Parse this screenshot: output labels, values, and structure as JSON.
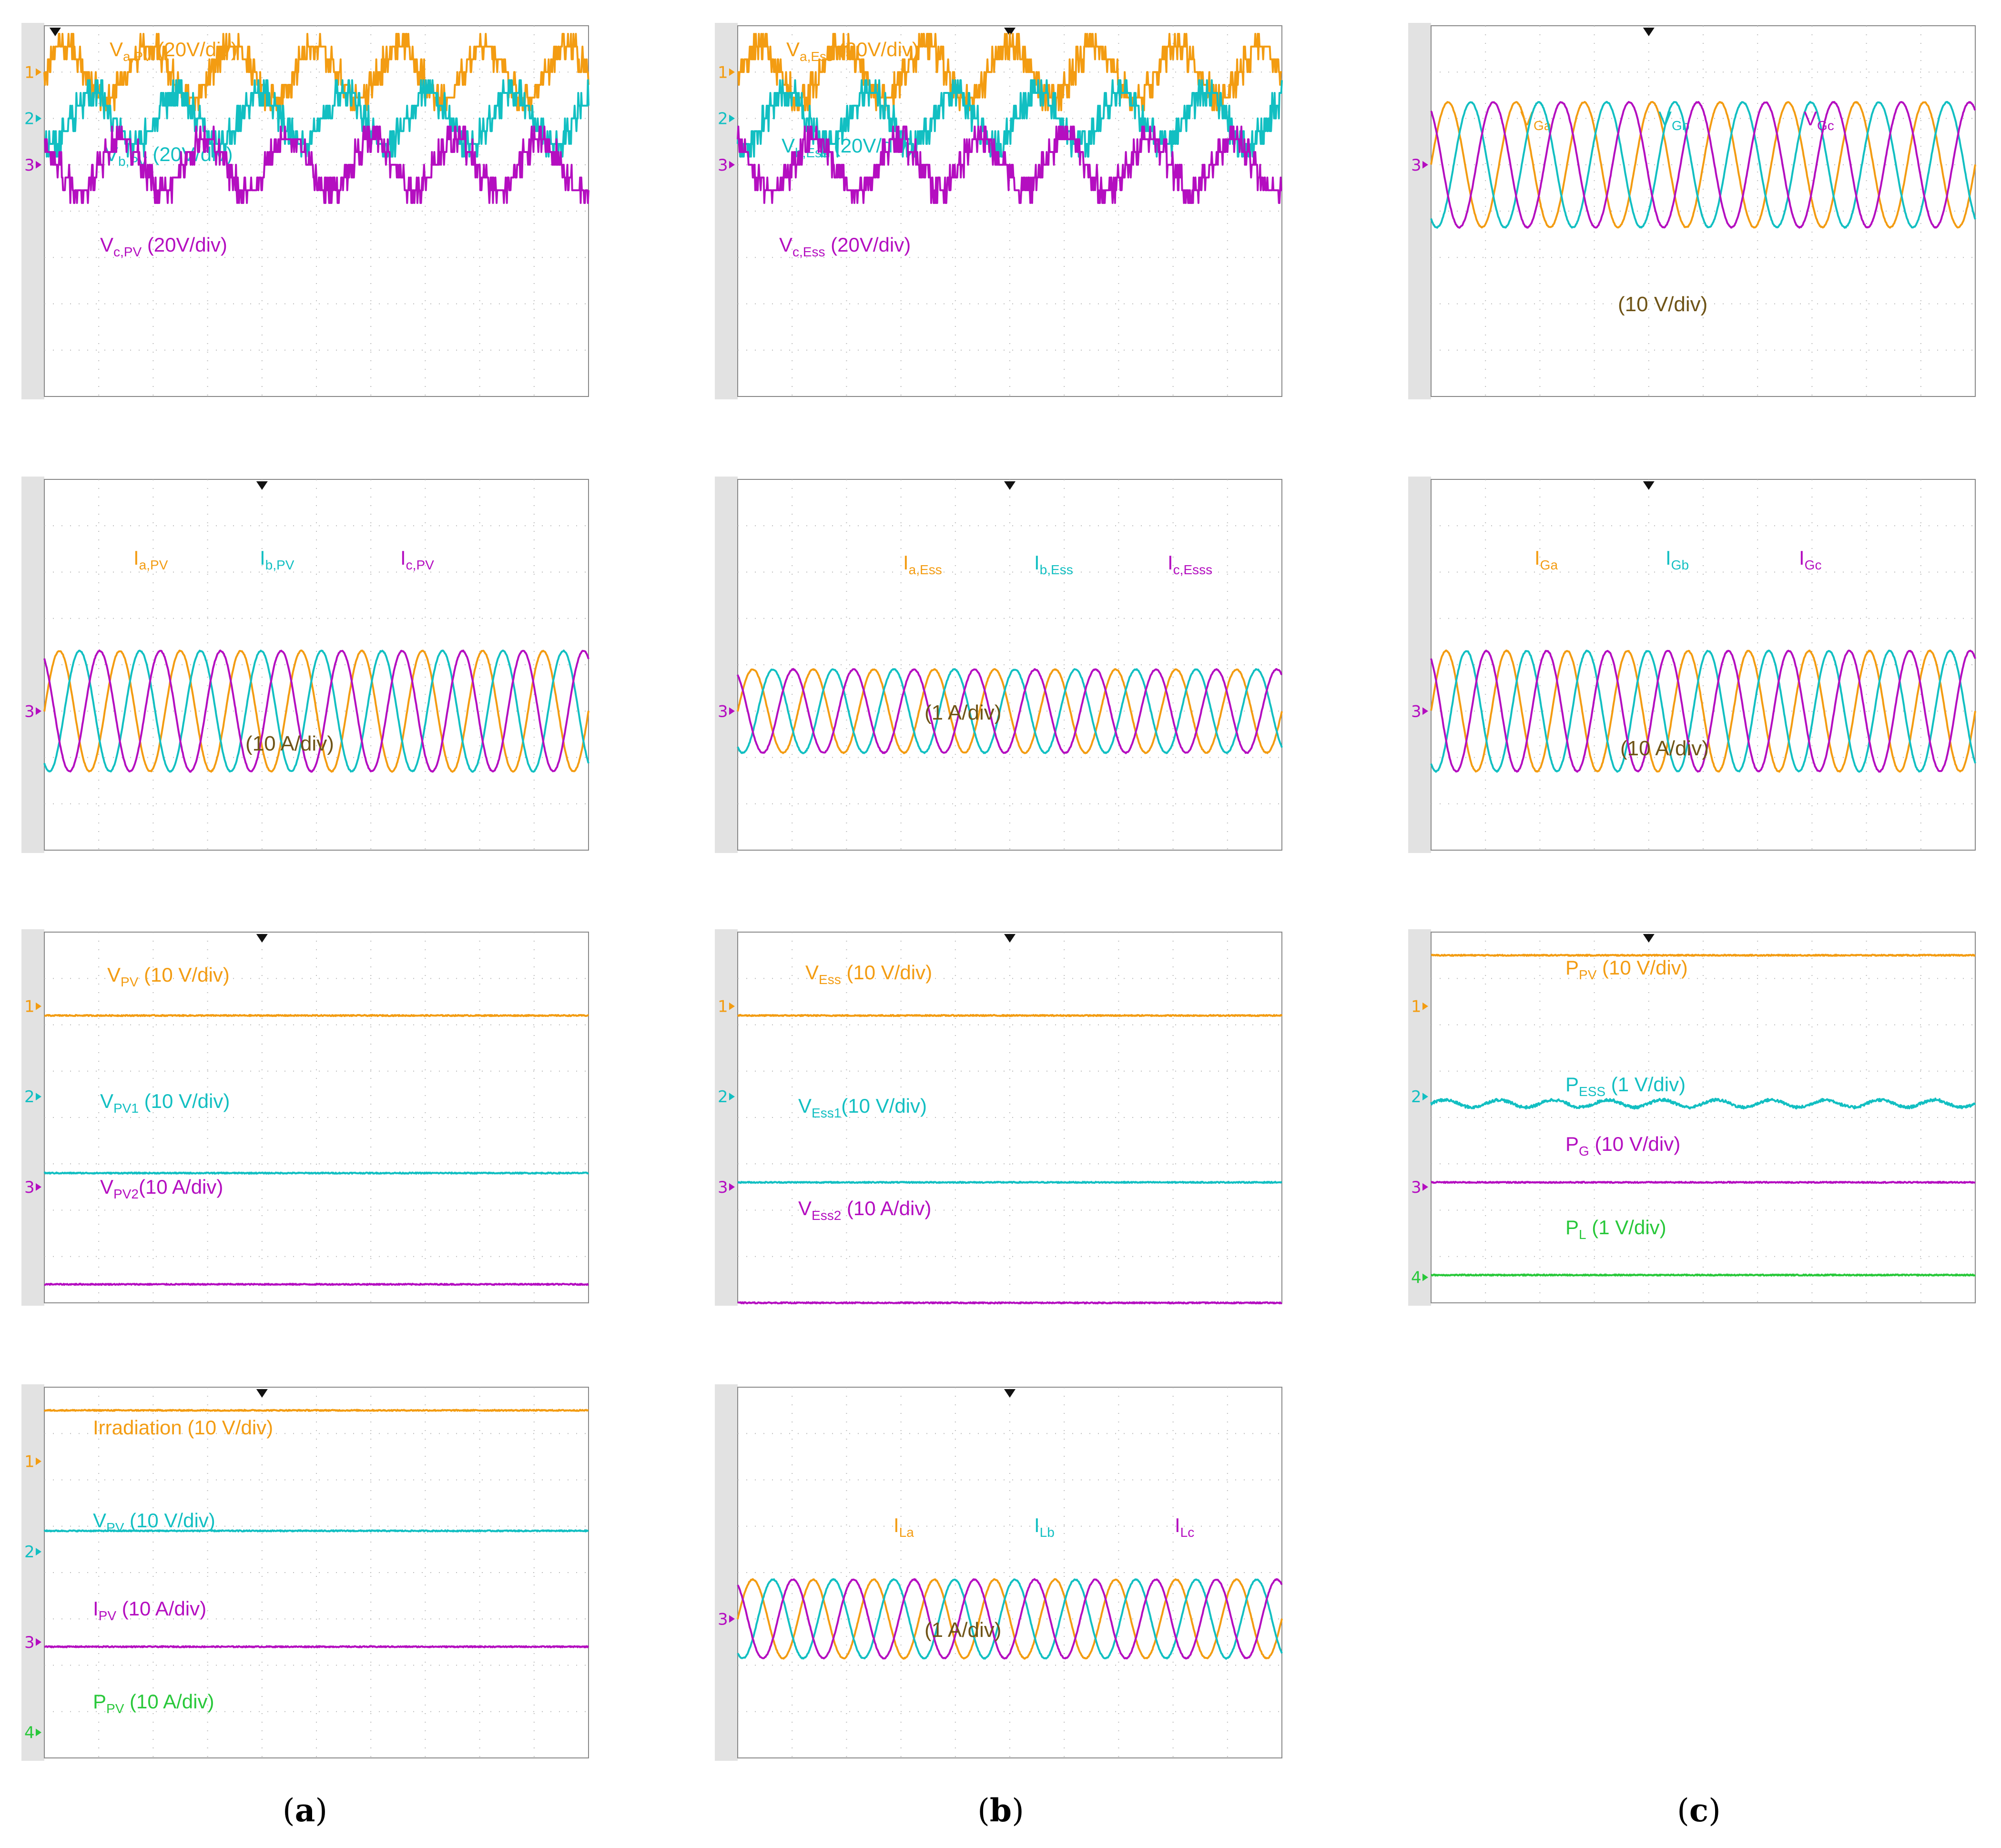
{
  "colors": {
    "orange": "#F39C12",
    "cyan": "#12BFC2",
    "magenta": "#B40EC0",
    "green": "#28C83A",
    "label_dark": "#6F5417",
    "grid": "#BBBBBB",
    "border": "#888888",
    "left_strip": "#E2E2E2"
  },
  "captions": [
    {
      "open": "(",
      "letter": "a",
      "close": ")"
    },
    {
      "open": "(",
      "letter": "b",
      "close": ")"
    },
    {
      "open": "(",
      "letter": "c",
      "close": ")"
    }
  ],
  "chart_data": [
    {
      "type": "line",
      "id": "a1",
      "column": "a",
      "series": [
        {
          "name": "Va,PV (20V/div)",
          "label_main": "V",
          "label_sub": "a,PV",
          "label_rest": " (20V/div)",
          "color": "orange",
          "shape": "multilevel",
          "level": 1,
          "amp": 0.55,
          "phase": 0
        },
        {
          "name": "Vb,PV (20V/div)",
          "label_main": "V",
          "label_sub": "b,PV",
          "label_rest": " (20V/div)",
          "color": "cyan",
          "shape": "multilevel",
          "level": 2,
          "amp": 0.55,
          "phase": -120
        },
        {
          "name": "Vc,PV (20V/div)",
          "label_main": "V",
          "label_sub": "c,PV",
          "label_rest": " (20V/div)",
          "color": "magenta",
          "shape": "multilevel",
          "level": 3,
          "amp": 0.55,
          "phase": 120
        }
      ],
      "cycles": 6.5,
      "channel_markers": [
        "1",
        "2",
        "3"
      ],
      "extra_label": ""
    },
    {
      "type": "line",
      "id": "b1",
      "column": "b",
      "series": [
        {
          "name": "Va,Ess (20V/div)",
          "label_main": "V",
          "label_sub": "a,Ess",
          "label_rest": " (20V/div)",
          "color": "orange",
          "shape": "multilevel",
          "level": 1,
          "amp": 0.55,
          "phase": 0
        },
        {
          "name": "Vb,Ess (20V/div)",
          "label_main": "V",
          "label_sub": "b,Ess",
          "label_rest": " (20V/div)",
          "color": "cyan",
          "shape": "multilevel",
          "level": 2,
          "amp": 0.55,
          "phase": -120
        },
        {
          "name": "Vc,Ess (20V/div)",
          "label_main": "V",
          "label_sub": "c,Ess",
          "label_rest": " (20V/div)",
          "color": "magenta",
          "shape": "multilevel",
          "level": 3,
          "amp": 0.55,
          "phase": 120
        }
      ],
      "cycles": 6.5,
      "channel_markers": [
        "1",
        "2",
        "3"
      ],
      "extra_label": ""
    },
    {
      "type": "line",
      "id": "c1",
      "column": "c",
      "series": [
        {
          "name": "VGa",
          "label_main": "V",
          "label_sub": "Ga",
          "label_rest": "",
          "color": "orange",
          "shape": "sine",
          "level": 3,
          "amp": 1.35,
          "phase": 0
        },
        {
          "name": "VGb",
          "label_main": "V",
          "label_sub": "Gb",
          "label_rest": "",
          "color": "cyan",
          "shape": "sine",
          "level": 3,
          "amp": 1.35,
          "phase": -120
        },
        {
          "name": "VGc",
          "label_main": "V",
          "label_sub": "Gc",
          "label_rest": "",
          "color": "magenta",
          "shape": "sine",
          "level": 3,
          "amp": 1.35,
          "phase": 120
        }
      ],
      "cycles": 8,
      "channel_markers": [
        "3"
      ],
      "extra_label": "(10 V/div)"
    },
    {
      "type": "line",
      "id": "a2",
      "column": "a",
      "series": [
        {
          "name": "Ia,PV",
          "label_main": "I",
          "label_sub": "a,PV",
          "label_rest": "",
          "color": "orange",
          "shape": "sine",
          "level": 5,
          "amp": 1.3,
          "phase": 0
        },
        {
          "name": "Ib,PV",
          "label_main": "I",
          "label_sub": "b,PV",
          "label_rest": "",
          "color": "cyan",
          "shape": "sine",
          "level": 5,
          "amp": 1.3,
          "phase": -120
        },
        {
          "name": "Ic,PV",
          "label_main": "I",
          "label_sub": "c,PV",
          "label_rest": "",
          "color": "magenta",
          "shape": "sine",
          "level": 5,
          "amp": 1.3,
          "phase": 120
        }
      ],
      "cycles": 9,
      "channel_markers": [
        "3"
      ],
      "extra_label": "(10 A/div)"
    },
    {
      "type": "line",
      "id": "b2",
      "column": "b",
      "series": [
        {
          "name": "Ia,Ess",
          "label_main": "I",
          "label_sub": "a,Ess",
          "label_rest": "",
          "color": "orange",
          "shape": "sine",
          "level": 5,
          "amp": 0.9,
          "phase": 0
        },
        {
          "name": "Ib,Ess",
          "label_main": "I",
          "label_sub": "b,Ess",
          "label_rest": "",
          "color": "cyan",
          "shape": "sine",
          "level": 5,
          "amp": 0.9,
          "phase": -120
        },
        {
          "name": "Ic,Esss",
          "label_main": "I",
          "label_sub": "c,Esss",
          "label_rest": "",
          "color": "magenta",
          "shape": "sine",
          "level": 5,
          "amp": 0.9,
          "phase": 120
        }
      ],
      "cycles": 9,
      "channel_markers": [
        "3"
      ],
      "extra_label": "(1 A/div)"
    },
    {
      "type": "line",
      "id": "c2",
      "column": "c",
      "series": [
        {
          "name": "IGa",
          "label_main": "I",
          "label_sub": "Ga",
          "label_rest": "",
          "color": "orange",
          "shape": "sine",
          "level": 5,
          "amp": 1.3,
          "phase": 0
        },
        {
          "name": "IGb",
          "label_main": "I",
          "label_sub": "Gb",
          "label_rest": "",
          "color": "cyan",
          "shape": "sine",
          "level": 5,
          "amp": 1.3,
          "phase": -120
        },
        {
          "name": "IGc",
          "label_main": "I",
          "label_sub": "Gc",
          "label_rest": "",
          "color": "magenta",
          "shape": "sine",
          "level": 5,
          "amp": 1.3,
          "phase": 120
        }
      ],
      "cycles": 9,
      "channel_markers": [
        "3"
      ],
      "extra_label": "(10 A/div)"
    },
    {
      "type": "line",
      "id": "a3",
      "column": "a",
      "series": [
        {
          "name": "VPV (10 V/div)",
          "label_main": "V",
          "label_sub": "PV",
          "label_rest": " (10 V/div)",
          "color": "orange",
          "shape": "flat",
          "level": 1.8
        },
        {
          "name": "VPV1 (10 V/div)",
          "label_main": "V",
          "label_sub": "PV1",
          "label_rest": " (10 V/div)",
          "color": "cyan",
          "shape": "flat",
          "level": 5.2
        },
        {
          "name": "VPV2(10 A/div)",
          "label_main": "V",
          "label_sub": "PV2",
          "label_rest": "(10 A/div)",
          "color": "magenta",
          "shape": "flat",
          "level": 7.6
        }
      ],
      "channel_markers": [
        "1",
        "2",
        "3"
      ],
      "extra_label": ""
    },
    {
      "type": "line",
      "id": "b3",
      "column": "b",
      "series": [
        {
          "name": "VEss (10 V/div)",
          "label_main": "V",
          "label_sub": "Ess",
          "label_rest": " (10 V/div)",
          "color": "orange",
          "shape": "flat",
          "level": 1.8
        },
        {
          "name": "VEss1(10 V/div)",
          "label_main": "V",
          "label_sub": "Ess1",
          "label_rest": "(10 V/div)",
          "color": "cyan",
          "shape": "flat",
          "level": 5.4
        },
        {
          "name": "VEss2 (10 A/div)",
          "label_main": "V",
          "label_sub": "Ess2",
          "label_rest": " (10 A/div)",
          "color": "magenta",
          "shape": "flat",
          "level": 8.0
        }
      ],
      "channel_markers": [
        "1",
        "2",
        "3"
      ],
      "extra_label": ""
    },
    {
      "type": "line",
      "id": "c3",
      "column": "c",
      "series": [
        {
          "name": "PPV (10 V/div)",
          "label_main": "P",
          "label_sub": "PV",
          "label_rest": " (10 V/div)",
          "color": "orange",
          "shape": "flat",
          "level": 0.5
        },
        {
          "name": "PESS (1 V/div)",
          "label_main": "P",
          "label_sub": "ESS",
          "label_rest": " (1 V/div)",
          "color": "cyan",
          "shape": "ripple",
          "level": 3.7
        },
        {
          "name": "PG (10 V/div)",
          "label_main": "P",
          "label_sub": "G",
          "label_rest": " (10 V/div)",
          "color": "magenta",
          "shape": "flat",
          "level": 5.4
        },
        {
          "name": "PL (1 V/div)",
          "label_main": "P",
          "label_sub": "L",
          "label_rest": " (1 V/div)",
          "color": "green",
          "shape": "flat",
          "level": 7.4
        }
      ],
      "channel_markers": [
        "1",
        "2",
        "3",
        "4"
      ],
      "extra_label": ""
    },
    {
      "type": "line",
      "id": "a4",
      "column": "a",
      "series": [
        {
          "name": "Irradiation (10 V/div)",
          "label_main": "Irradiation",
          "label_sub": "",
          "label_rest": "  (10 V/div)",
          "color": "orange",
          "shape": "flat",
          "level": 0.5
        },
        {
          "name": "VPV (10 V/div)",
          "label_main": "V",
          "label_sub": "PV",
          "label_rest": "      (10 V/div)",
          "color": "cyan",
          "shape": "flat",
          "level": 3.1
        },
        {
          "name": "IPV (10 A/div)",
          "label_main": "I",
          "label_sub": "PV",
          "label_rest": "       (10 A/div)",
          "color": "magenta",
          "shape": "flat",
          "level": 5.6
        },
        {
          "name": "PPV (10 A/div)",
          "label_main": "P",
          "label_sub": "PV",
          "label_rest": "      (10 A/div)",
          "color": "green",
          "shape": "flat",
          "level": 8.1
        }
      ],
      "channel_markers": [
        "1",
        "2",
        "3",
        "4"
      ],
      "extra_label": ""
    },
    {
      "type": "line",
      "id": "b4",
      "column": "b",
      "series": [
        {
          "name": "ILa",
          "label_main": "I",
          "label_sub": "La",
          "label_rest": "",
          "color": "orange",
          "shape": "sine",
          "level": 5,
          "amp": 0.85,
          "phase": 0
        },
        {
          "name": "ILb",
          "label_main": "I",
          "label_sub": "Lb",
          "label_rest": "",
          "color": "cyan",
          "shape": "sine",
          "level": 5,
          "amp": 0.85,
          "phase": -120
        },
        {
          "name": "ILc",
          "label_main": "I",
          "label_sub": "Lc",
          "label_rest": "",
          "color": "magenta",
          "shape": "sine",
          "level": 5,
          "amp": 0.85,
          "phase": 120
        }
      ],
      "cycles": 9,
      "channel_markers": [
        "3"
      ],
      "extra_label": "(1 A/div)"
    }
  ]
}
